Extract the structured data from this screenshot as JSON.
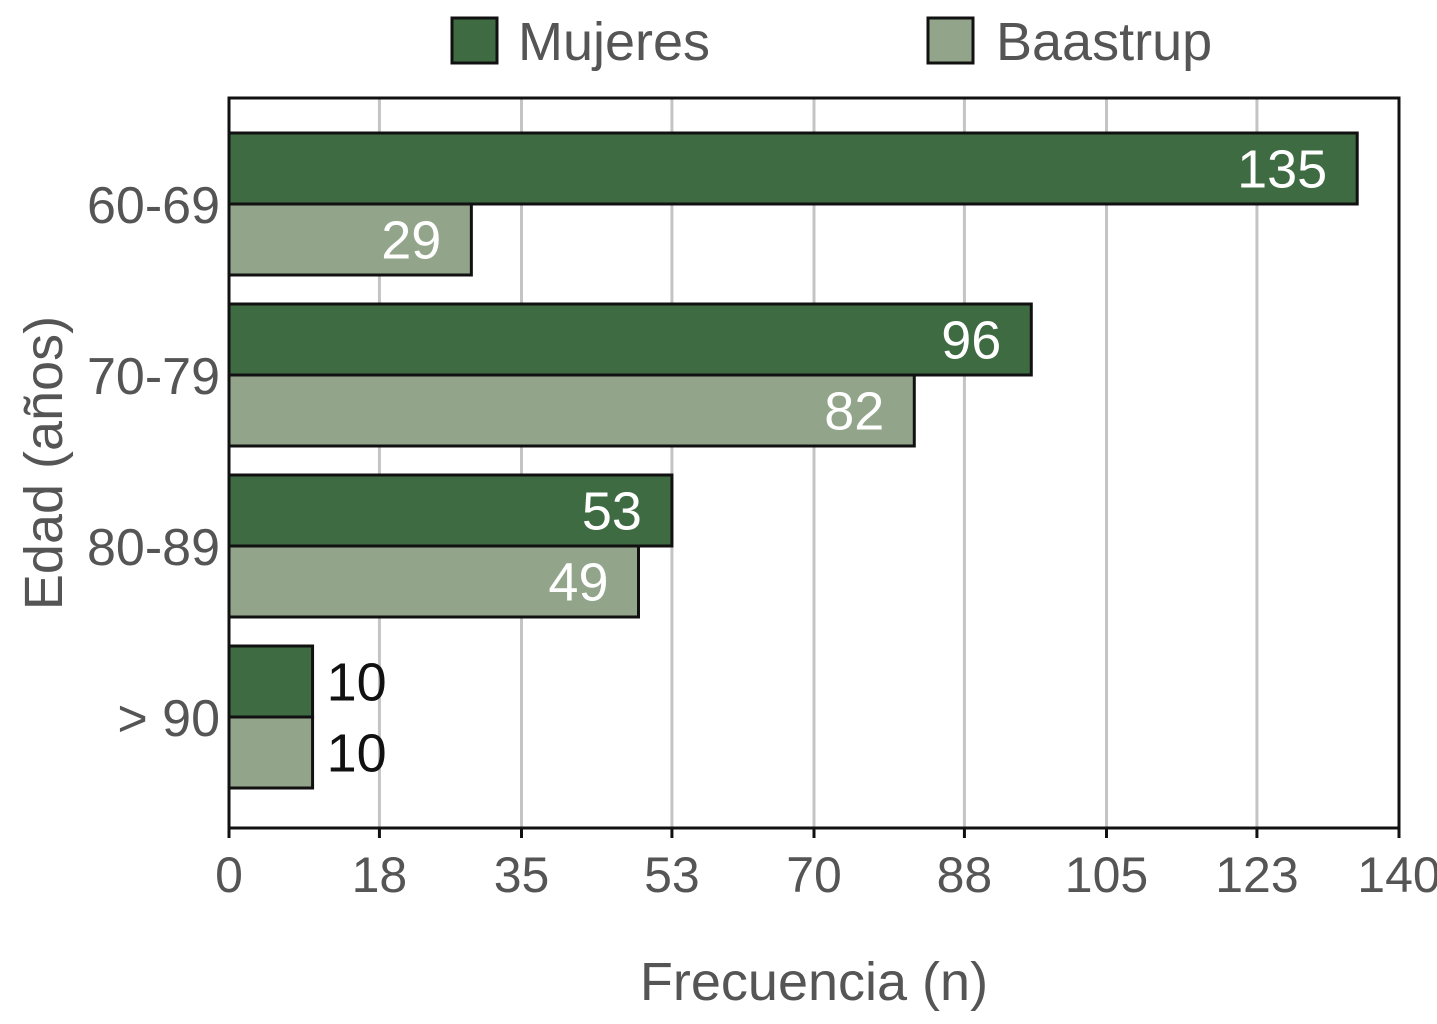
{
  "chart_data": {
    "type": "bar",
    "orientation": "horizontal",
    "categories": [
      "60-69",
      "70-79",
      "80-89",
      "> 90"
    ],
    "series": [
      {
        "name": "Mujeres",
        "values": [
          135,
          96,
          53,
          10
        ],
        "color": "#3e6b42"
      },
      {
        "name": "Baastrup",
        "values": [
          29,
          82,
          49,
          10
        ],
        "color": "#92a58b"
      }
    ],
    "data_labels": [
      [
        "135",
        "96",
        "53",
        "10"
      ],
      [
        "29",
        "82",
        "49",
        "10"
      ]
    ],
    "xticks": [
      0,
      18,
      35,
      53,
      70,
      88,
      105,
      123,
      140
    ],
    "xtick_labels": [
      "0",
      "18",
      "35",
      "53",
      "70",
      "88",
      "105",
      "123",
      "140"
    ],
    "xlim": [
      0,
      140
    ],
    "xlabel": "Frecuencia (n)",
    "ylabel": "Edad (años)",
    "grid": "vertical",
    "legend": "top-center"
  }
}
